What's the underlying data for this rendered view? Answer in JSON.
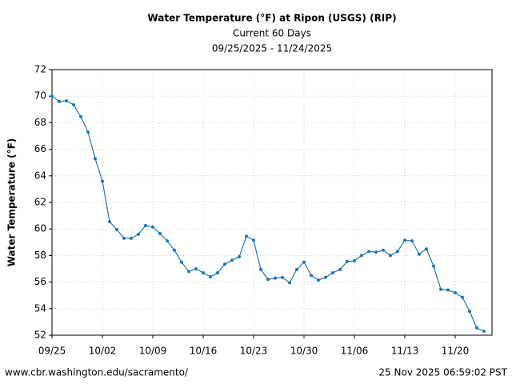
{
  "chart_data": {
    "type": "line",
    "title": "Water Temperature (°F) at Ripon (USGS) (RIP)",
    "subtitle": "Current 60 Days",
    "date_range": "09/25/2025 - 11/24/2025",
    "y_label": "Water Temperature (°F)",
    "x": [
      "09/25",
      "09/26",
      "09/27",
      "09/28",
      "09/29",
      "09/30",
      "10/01",
      "10/02",
      "10/03",
      "10/04",
      "10/05",
      "10/06",
      "10/07",
      "10/08",
      "10/09",
      "10/10",
      "10/11",
      "10/12",
      "10/13",
      "10/14",
      "10/15",
      "10/16",
      "10/17",
      "10/18",
      "10/19",
      "10/20",
      "10/21",
      "10/22",
      "10/23",
      "10/24",
      "10/25",
      "10/26",
      "10/27",
      "10/28",
      "10/29",
      "10/30",
      "10/31",
      "11/01",
      "11/02",
      "11/03",
      "11/04",
      "11/05",
      "11/06",
      "11/07",
      "11/08",
      "11/09",
      "11/10",
      "11/11",
      "11/12",
      "11/13",
      "11/14",
      "11/15",
      "11/16",
      "11/17",
      "11/18",
      "11/19",
      "11/20",
      "11/21",
      "11/22",
      "11/23",
      "11/24"
    ],
    "values": [
      70.0,
      69.6,
      69.65,
      69.35,
      68.45,
      67.3,
      65.3,
      63.6,
      60.55,
      59.95,
      59.3,
      59.3,
      59.6,
      60.25,
      60.15,
      59.65,
      59.1,
      58.4,
      57.5,
      56.8,
      57.0,
      56.7,
      56.4,
      56.7,
      57.35,
      57.65,
      57.9,
      59.45,
      59.15,
      56.95,
      56.2,
      56.3,
      56.35,
      55.95,
      56.95,
      57.5,
      56.5,
      56.15,
      56.35,
      56.7,
      56.95,
      57.55,
      57.6,
      58.0,
      58.3,
      58.25,
      58.4,
      58.0,
      58.3,
      59.15,
      59.1,
      58.1,
      58.5,
      57.2,
      55.45,
      55.4,
      55.2,
      54.85,
      53.8,
      52.55,
      52.3
    ],
    "color": "#1f77b4",
    "ylim": [
      52,
      72
    ],
    "yticks": [
      52,
      54,
      56,
      58,
      60,
      62,
      64,
      66,
      68,
      70,
      72
    ],
    "xticks": [
      "09/25",
      "10/02",
      "10/09",
      "10/16",
      "10/23",
      "10/30",
      "11/06",
      "11/13",
      "11/20"
    ],
    "grid": true
  },
  "footer": {
    "left": "www.cbr.washington.edu/sacramento/",
    "right": "25 Nov 2025 06:59:02 PST"
  }
}
